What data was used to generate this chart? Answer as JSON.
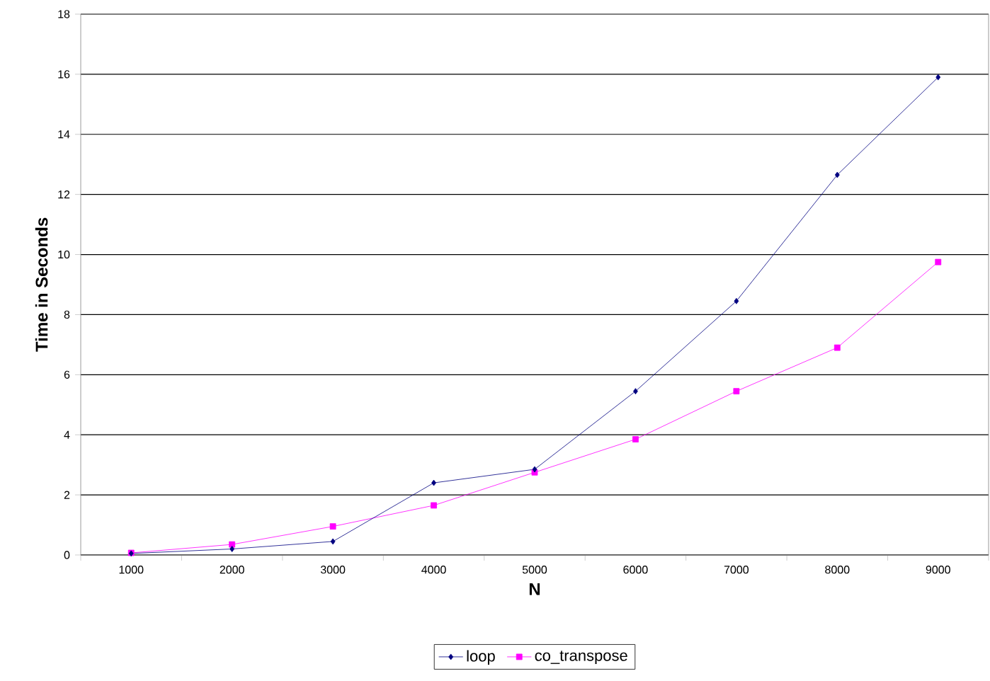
{
  "chart_data": {
    "type": "line",
    "xlabel": "N",
    "ylabel": "Time in Seconds",
    "categories": [
      "1000",
      "2000",
      "3000",
      "4000",
      "5000",
      "6000",
      "7000",
      "8000",
      "9000"
    ],
    "series": [
      {
        "name": "loop",
        "color": "#000080",
        "marker": "diamond",
        "values": [
          0.05,
          0.2,
          0.45,
          2.4,
          2.85,
          5.45,
          8.45,
          12.65,
          15.9
        ]
      },
      {
        "name": "co_transpose",
        "color": "#ff00ff",
        "marker": "square",
        "values": [
          0.07,
          0.35,
          0.95,
          1.65,
          2.75,
          3.85,
          5.45,
          6.9,
          9.75
        ]
      }
    ],
    "ylim": [
      0,
      18
    ],
    "yticks": [
      0,
      2,
      4,
      6,
      8,
      10,
      12,
      14,
      16,
      18
    ],
    "grid": "y",
    "legend": "bottom"
  }
}
